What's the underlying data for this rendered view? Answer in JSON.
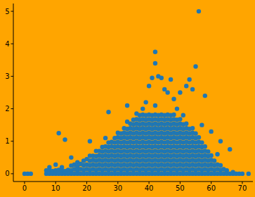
{
  "chart_data": {
    "type": "scatter",
    "color": "#1f77b4",
    "marker": "o",
    "xlim": [
      -3.6,
      73.4
    ],
    "ylim": [
      -0.24,
      5.24
    ],
    "xticks": [
      0,
      10,
      20,
      30,
      40,
      50,
      60,
      70
    ],
    "yticks": [
      0,
      1,
      2,
      3,
      4,
      5
    ],
    "x": [
      0,
      1,
      2,
      7,
      7,
      8,
      8,
      8,
      9,
      9,
      10,
      10,
      10,
      11,
      11,
      11,
      12,
      12,
      12,
      13,
      13,
      13,
      14,
      14,
      15,
      15,
      15,
      15,
      16,
      16,
      16,
      17,
      17,
      17,
      17,
      18,
      18,
      18,
      19,
      19,
      19,
      19,
      20,
      20,
      20,
      20,
      21,
      21,
      21,
      21,
      21,
      21,
      22,
      22,
      22,
      22,
      22,
      23,
      23,
      23,
      23,
      23,
      23,
      24,
      24,
      24,
      24,
      24,
      24,
      25,
      25,
      25,
      25,
      25,
      25,
      25,
      26,
      26,
      26,
      26,
      26,
      26,
      26,
      26,
      27,
      27,
      27,
      27,
      27,
      27,
      27,
      27,
      27,
      28,
      28,
      28,
      28,
      28,
      28,
      28,
      28,
      29,
      29,
      29,
      29,
      29,
      29,
      29,
      29,
      29,
      30,
      30,
      30,
      30,
      30,
      30,
      30,
      30,
      30,
      30,
      31,
      31,
      31,
      31,
      31,
      31,
      31,
      31,
      31,
      31,
      32,
      32,
      32,
      32,
      32,
      32,
      32,
      32,
      32,
      32,
      32,
      33,
      33,
      33,
      33,
      33,
      33,
      33,
      33,
      33,
      33,
      33,
      33,
      33,
      34,
      34,
      34,
      34,
      34,
      34,
      34,
      34,
      34,
      34,
      34,
      34,
      35,
      35,
      35,
      35,
      35,
      35,
      35,
      35,
      35,
      35,
      35,
      35,
      35,
      36,
      36,
      36,
      36,
      36,
      36,
      36,
      36,
      36,
      36,
      36,
      36,
      36,
      36,
      37,
      37,
      37,
      37,
      37,
      37,
      37,
      37,
      37,
      37,
      37,
      37,
      37,
      37,
      38,
      38,
      38,
      38,
      38,
      38,
      38,
      38,
      38,
      38,
      38,
      38,
      38,
      38,
      38,
      39,
      39,
      39,
      39,
      39,
      39,
      39,
      39,
      39,
      39,
      39,
      39,
      39,
      39,
      39,
      40,
      40,
      40,
      40,
      40,
      40,
      40,
      40,
      40,
      40,
      40,
      40,
      40,
      40,
      40,
      41,
      41,
      41,
      41,
      41,
      41,
      41,
      41,
      41,
      41,
      41,
      41,
      41,
      41,
      41,
      42,
      42,
      42,
      42,
      42,
      42,
      42,
      42,
      42,
      42,
      42,
      42,
      42,
      42,
      42,
      42,
      42,
      43,
      43,
      43,
      43,
      43,
      43,
      43,
      43,
      43,
      43,
      43,
      43,
      43,
      43,
      43,
      44,
      44,
      44,
      44,
      44,
      44,
      44,
      44,
      44,
      44,
      44,
      44,
      44,
      44,
      44,
      45,
      45,
      45,
      45,
      45,
      45,
      45,
      45,
      45,
      45,
      45,
      45,
      45,
      45,
      45,
      46,
      46,
      46,
      46,
      46,
      46,
      46,
      46,
      46,
      46,
      46,
      46,
      46,
      46,
      46,
      47,
      47,
      47,
      47,
      47,
      47,
      47,
      47,
      47,
      47,
      47,
      47,
      47,
      47,
      47,
      48,
      48,
      48,
      48,
      48,
      48,
      48,
      48,
      48,
      48,
      48,
      48,
      48,
      48,
      48,
      49,
      49,
      49,
      49,
      49,
      49,
      49,
      49,
      49,
      49,
      49,
      49,
      49,
      49,
      50,
      50,
      50,
      50,
      50,
      50,
      50,
      50,
      50,
      50,
      50,
      50,
      50,
      50,
      51,
      51,
      51,
      51,
      51,
      51,
      51,
      51,
      51,
      51,
      51,
      51,
      51,
      52,
      52,
      52,
      52,
      52,
      52,
      52,
      52,
      52,
      52,
      52,
      52,
      52,
      53,
      53,
      53,
      53,
      53,
      53,
      53,
      53,
      53,
      53,
      53,
      53,
      54,
      54,
      54,
      54,
      54,
      54,
      54,
      54,
      54,
      54,
      54,
      54,
      55,
      55,
      55,
      55,
      55,
      55,
      55,
      55,
      55,
      55,
      55,
      56,
      56,
      56,
      56,
      56,
      56,
      56,
      56,
      56,
      56,
      57,
      57,
      57,
      57,
      57,
      57,
      57,
      57,
      57,
      58,
      58,
      58,
      58,
      58,
      58,
      58,
      58,
      59,
      59,
      59,
      59,
      59,
      59,
      60,
      60,
      60,
      60,
      60,
      60,
      61,
      61,
      61,
      61,
      62,
      62,
      62,
      62,
      63,
      63,
      63,
      63,
      64,
      64,
      65,
      65,
      66,
      66,
      67,
      67,
      68,
      69,
      70,
      72
    ],
    "values": [
      0,
      0,
      0,
      0,
      0.1,
      0,
      0.12,
      0.2,
      0,
      0.08,
      0,
      0.1,
      0.28,
      0,
      0.12,
      1.25,
      0,
      0.1,
      0.2,
      0,
      0.08,
      1.05,
      0,
      0.12,
      0,
      0.1,
      0.25,
      0.5,
      0,
      0.14,
      0.28,
      0,
      0.1,
      0.22,
      0.35,
      0,
      0.14,
      0.3,
      0,
      0.12,
      0.26,
      0.4,
      0,
      0.14,
      0.28,
      0.45,
      0,
      0.12,
      0.26,
      0.4,
      0.55,
      1.0,
      0,
      0.14,
      0.28,
      0.42,
      0.55,
      0,
      0.12,
      0.26,
      0.4,
      0.54,
      0.7,
      0,
      0.14,
      0.28,
      0.42,
      0.56,
      0.7,
      0,
      0.12,
      0.26,
      0.4,
      0.54,
      0.68,
      0.82,
      0,
      0.14,
      0.28,
      0.42,
      0.56,
      0.7,
      0.84,
      1.1,
      0,
      0.12,
      0.26,
      0.4,
      0.54,
      0.68,
      0.82,
      0.96,
      1.9,
      0,
      0.14,
      0.28,
      0.42,
      0.56,
      0.7,
      0.84,
      0.98,
      0,
      0.12,
      0.26,
      0.4,
      0.54,
      0.68,
      0.82,
      0.96,
      1.1,
      0,
      0.14,
      0.28,
      0.42,
      0.56,
      0.7,
      0.84,
      0.98,
      1.12,
      1.26,
      0,
      0.12,
      0.26,
      0.4,
      0.54,
      0.68,
      0.82,
      0.96,
      1.1,
      1.24,
      0,
      0.14,
      0.28,
      0.42,
      0.56,
      0.7,
      0.84,
      0.98,
      1.12,
      1.26,
      1.4,
      0,
      0.12,
      0.26,
      0.4,
      0.54,
      0.68,
      0.82,
      0.96,
      1.1,
      1.24,
      1.38,
      1.6,
      2.1,
      0,
      0.14,
      0.28,
      0.42,
      0.56,
      0.7,
      0.84,
      0.98,
      1.12,
      1.26,
      1.4,
      1.54,
      0,
      0.12,
      0.26,
      0.4,
      0.54,
      0.68,
      0.82,
      0.96,
      1.1,
      1.24,
      1.38,
      1.52,
      1.66,
      0,
      0.14,
      0.28,
      0.42,
      0.56,
      0.7,
      0.84,
      0.98,
      1.12,
      1.26,
      1.4,
      1.54,
      1.68,
      1.85,
      0,
      0.12,
      0.26,
      0.4,
      0.54,
      0.68,
      0.82,
      0.96,
      1.1,
      1.24,
      1.38,
      1.52,
      1.66,
      1.8,
      0,
      0.14,
      0.28,
      0.42,
      0.56,
      0.7,
      0.84,
      0.98,
      1.12,
      1.26,
      1.4,
      1.54,
      1.68,
      1.82,
      2.0,
      0,
      0.12,
      0.26,
      0.4,
      0.54,
      0.68,
      0.82,
      0.96,
      1.1,
      1.24,
      1.38,
      1.52,
      1.66,
      1.8,
      2.2,
      0,
      0.14,
      0.28,
      0.42,
      0.56,
      0.7,
      0.84,
      0.98,
      1.12,
      1.26,
      1.4,
      1.54,
      1.68,
      1.82,
      2.7,
      0,
      0.12,
      0.26,
      0.4,
      0.54,
      0.68,
      0.82,
      0.96,
      1.1,
      1.24,
      1.38,
      1.52,
      1.66,
      1.8,
      2.95,
      0,
      0.14,
      0.28,
      0.42,
      0.56,
      0.7,
      0.84,
      0.98,
      1.12,
      1.26,
      1.4,
      1.54,
      1.68,
      1.82,
      2.1,
      3.4,
      3.75,
      0,
      0.12,
      0.26,
      0.4,
      0.54,
      0.68,
      0.82,
      0.96,
      1.1,
      1.24,
      1.38,
      1.52,
      1.66,
      1.8,
      3.0,
      0,
      0.14,
      0.28,
      0.42,
      0.56,
      0.7,
      0.84,
      0.98,
      1.12,
      1.26,
      1.4,
      1.54,
      1.68,
      1.82,
      2.95,
      0,
      0.12,
      0.26,
      0.4,
      0.54,
      0.68,
      0.82,
      0.96,
      1.1,
      1.24,
      1.38,
      1.52,
      1.66,
      1.8,
      2.6,
      0,
      0.14,
      0.28,
      0.42,
      0.56,
      0.7,
      0.84,
      0.98,
      1.12,
      1.26,
      1.4,
      1.54,
      1.68,
      1.82,
      2.5,
      0,
      0.12,
      0.26,
      0.4,
      0.54,
      0.68,
      0.82,
      0.96,
      1.1,
      1.24,
      1.38,
      1.52,
      1.66,
      1.8,
      2.9,
      0,
      0.14,
      0.28,
      0.42,
      0.56,
      0.7,
      0.84,
      0.98,
      1.12,
      1.26,
      1.4,
      1.54,
      1.68,
      1.82,
      2.3,
      0,
      0.12,
      0.26,
      0.4,
      0.54,
      0.68,
      0.82,
      0.96,
      1.1,
      1.24,
      1.38,
      1.52,
      1.66,
      2.0,
      0,
      0.14,
      0.28,
      0.42,
      0.56,
      0.7,
      0.84,
      0.98,
      1.12,
      1.26,
      1.4,
      1.54,
      1.68,
      2.5,
      0,
      0.12,
      0.26,
      0.4,
      0.54,
      0.68,
      0.82,
      0.96,
      1.1,
      1.24,
      1.38,
      1.52,
      1.8,
      0,
      0.14,
      0.28,
      0.42,
      0.56,
      0.7,
      0.84,
      0.98,
      1.12,
      1.26,
      1.4,
      1.54,
      2.7,
      0,
      0.12,
      0.26,
      0.4,
      0.54,
      0.68,
      0.82,
      0.96,
      1.1,
      1.24,
      1.38,
      2.9,
      0,
      0.14,
      0.28,
      0.42,
      0.56,
      0.7,
      0.84,
      0.98,
      1.12,
      1.26,
      1.4,
      2.6,
      0,
      0.12,
      0.26,
      0.4,
      0.54,
      0.68,
      0.82,
      0.96,
      1.1,
      1.24,
      3.3,
      0,
      0.14,
      0.28,
      0.42,
      0.56,
      0.7,
      0.84,
      0.98,
      1.12,
      5.0,
      0,
      0.12,
      0.26,
      0.4,
      0.54,
      0.68,
      0.82,
      0.96,
      1.5,
      0,
      0.14,
      0.28,
      0.42,
      0.56,
      0.7,
      0.84,
      2.4,
      0,
      0.12,
      0.26,
      0.4,
      0.54,
      0.68,
      0,
      0.14,
      0.28,
      0.42,
      0.56,
      1.3,
      0,
      0.12,
      0.26,
      0.4,
      0,
      0.14,
      0.28,
      0.6,
      0,
      0.12,
      0.26,
      1.0,
      0,
      0.14,
      0,
      0.1,
      0,
      0.75,
      0,
      0.05,
      0,
      0,
      0,
      0
    ]
  }
}
